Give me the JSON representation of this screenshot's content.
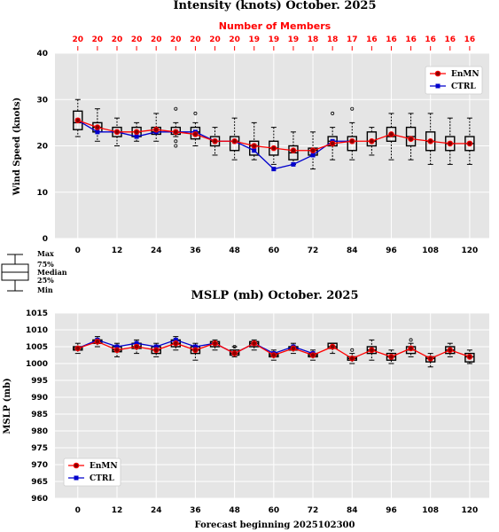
{
  "chart_data": [
    {
      "type": "box",
      "title": "Intensity (knots) October. 2025",
      "top_label": "Number of Members",
      "ylabel": "Wind Speed (knots)",
      "xlabel": "",
      "x": [
        0,
        6,
        12,
        18,
        24,
        30,
        36,
        42,
        48,
        54,
        60,
        66,
        72,
        78,
        84,
        90,
        96,
        102,
        108,
        114,
        120
      ],
      "x_ticks": [
        "0",
        "12",
        "24",
        "36",
        "48",
        "60",
        "72",
        "84",
        "96",
        "108",
        "120"
      ],
      "x_tick_values": [
        0,
        12,
        24,
        36,
        48,
        60,
        72,
        84,
        96,
        108,
        120
      ],
      "y_ticks": [
        "0",
        "10",
        "20",
        "30",
        "40"
      ],
      "xlim": [
        -7,
        126
      ],
      "ylim": [
        0,
        40
      ],
      "members": [
        "20",
        "20",
        "20",
        "20",
        "20",
        "20",
        "20",
        "20",
        "20",
        "19",
        "19",
        "19",
        "18",
        "18",
        "17",
        "16",
        "16",
        "16",
        "16",
        "16",
        "16"
      ],
      "boxes": [
        {
          "min": 22,
          "q1": 23.5,
          "median": 25,
          "q3": 27.5,
          "max": 30,
          "outliers": []
        },
        {
          "min": 21,
          "q1": 23,
          "median": 24,
          "q3": 25,
          "max": 28,
          "outliers": []
        },
        {
          "min": 20,
          "q1": 22,
          "median": 23,
          "q3": 24,
          "max": 26,
          "outliers": []
        },
        {
          "min": 21,
          "q1": 22,
          "median": 23,
          "q3": 24,
          "max": 25,
          "outliers": []
        },
        {
          "min": 21,
          "q1": 22.5,
          "median": 23,
          "q3": 24,
          "max": 27,
          "outliers": []
        },
        {
          "min": 22,
          "q1": 22.5,
          "median": 23,
          "q3": 24,
          "max": 25,
          "outliers": [
            28,
            21,
            20
          ]
        },
        {
          "min": 20,
          "q1": 21.5,
          "median": 23,
          "q3": 24,
          "max": 25,
          "outliers": [
            27
          ]
        },
        {
          "min": 18,
          "q1": 20,
          "median": 21,
          "q3": 22,
          "max": 24,
          "outliers": []
        },
        {
          "min": 17,
          "q1": 19,
          "median": 21,
          "q3": 22,
          "max": 26,
          "outliers": []
        },
        {
          "min": 17,
          "q1": 18,
          "median": 20,
          "q3": 21,
          "max": 25,
          "outliers": []
        },
        {
          "min": 16,
          "q1": 18,
          "median": 19.5,
          "q3": 21,
          "max": 24,
          "outliers": []
        },
        {
          "min": 16,
          "q1": 17,
          "median": 18.5,
          "q3": 20,
          "max": 23,
          "outliers": []
        },
        {
          "min": 15,
          "q1": 18,
          "median": 19,
          "q3": 19.5,
          "max": 23,
          "outliers": []
        },
        {
          "min": 17,
          "q1": 20,
          "median": 21,
          "q3": 22,
          "max": 24,
          "outliers": [
            27
          ]
        },
        {
          "min": 17,
          "q1": 19,
          "median": 21,
          "q3": 22,
          "max": 25,
          "outliers": [
            28
          ]
        },
        {
          "min": 18,
          "q1": 20,
          "median": 21,
          "q3": 23,
          "max": 24,
          "outliers": []
        },
        {
          "min": 17,
          "q1": 21,
          "median": 22,
          "q3": 24,
          "max": 27,
          "outliers": []
        },
        {
          "min": 17,
          "q1": 20,
          "median": 22,
          "q3": 24,
          "max": 27,
          "outliers": []
        },
        {
          "min": 16,
          "q1": 19,
          "median": 21,
          "q3": 23,
          "max": 27,
          "outliers": []
        },
        {
          "min": 16,
          "q1": 19,
          "median": 20.5,
          "q3": 22,
          "max": 26,
          "outliers": []
        },
        {
          "min": 16,
          "q1": 19,
          "median": 20.5,
          "q3": 22,
          "max": 26,
          "outliers": []
        }
      ],
      "series": [
        {
          "name": "EnMN",
          "color": "#ff0000",
          "marker": "circle",
          "values": [
            25.5,
            24,
            23,
            23,
            23.5,
            23,
            22.5,
            21,
            21,
            20,
            19.5,
            19,
            19,
            20.5,
            21,
            21,
            22.5,
            21.5,
            21,
            20.5,
            20.5
          ]
        },
        {
          "name": "CTRL",
          "color": "#0000cc",
          "marker": "square",
          "values": [
            25.5,
            23,
            23,
            22,
            23,
            23,
            23,
            21,
            21,
            19,
            15,
            16,
            18,
            21,
            21,
            null,
            null,
            null,
            null,
            null,
            null
          ]
        }
      ],
      "legend_position": "upper right",
      "grid": true
    },
    {
      "type": "box",
      "title": "MSLP (mb) October. 2025",
      "ylabel": "MSLP (mb)",
      "xlabel": "Forecast beginning 2025102300",
      "x": [
        0,
        6,
        12,
        18,
        24,
        30,
        36,
        42,
        48,
        54,
        60,
        66,
        72,
        78,
        84,
        90,
        96,
        102,
        108,
        114,
        120
      ],
      "x_ticks": [
        "0",
        "12",
        "24",
        "36",
        "48",
        "60",
        "72",
        "84",
        "96",
        "108",
        "120"
      ],
      "x_tick_values": [
        0,
        12,
        24,
        36,
        48,
        60,
        72,
        84,
        96,
        108,
        120
      ],
      "y_ticks": [
        "960",
        "965",
        "970",
        "975",
        "980",
        "985",
        "990",
        "995",
        "1000",
        "1005",
        "1010",
        "1015"
      ],
      "xlim": [
        -7,
        126
      ],
      "ylim": [
        960,
        1015
      ],
      "boxes": [
        {
          "min": 1003,
          "q1": 1004,
          "median": 1004.5,
          "q3": 1005,
          "max": 1006,
          "outliers": []
        },
        {
          "min": 1005,
          "q1": 1006,
          "median": 1006.5,
          "q3": 1007,
          "max": 1008,
          "outliers": []
        },
        {
          "min": 1002,
          "q1": 1003.5,
          "median": 1004,
          "q3": 1005,
          "max": 1006,
          "outliers": []
        },
        {
          "min": 1003,
          "q1": 1004.5,
          "median": 1005,
          "q3": 1006,
          "max": 1007,
          "outliers": []
        },
        {
          "min": 1002,
          "q1": 1003,
          "median": 1004,
          "q3": 1005,
          "max": 1006,
          "outliers": []
        },
        {
          "min": 1004,
          "q1": 1005,
          "median": 1006,
          "q3": 1007,
          "max": 1008,
          "outliers": []
        },
        {
          "min": 1001,
          "q1": 1003,
          "median": 1004,
          "q3": 1005,
          "max": 1006,
          "outliers": []
        },
        {
          "min": 1004,
          "q1": 1005,
          "median": 1006,
          "q3": 1006.5,
          "max": 1007,
          "outliers": []
        },
        {
          "min": 1002,
          "q1": 1002.5,
          "median": 1003,
          "q3": 1004,
          "max": 1005,
          "outliers": [
            1005
          ]
        },
        {
          "min": 1004,
          "q1": 1005,
          "median": 1006,
          "q3": 1006.5,
          "max": 1007,
          "outliers": []
        },
        {
          "min": 1001,
          "q1": 1002,
          "median": 1002.5,
          "q3": 1003,
          "max": 1004,
          "outliers": []
        },
        {
          "min": 1003,
          "q1": 1004,
          "median": 1004.5,
          "q3": 1005,
          "max": 1006,
          "outliers": []
        },
        {
          "min": 1001,
          "q1": 1002,
          "median": 1002.5,
          "q3": 1003,
          "max": 1004,
          "outliers": []
        },
        {
          "min": 1003,
          "q1": 1004.5,
          "median": 1005,
          "q3": 1006,
          "max": 1006,
          "outliers": []
        },
        {
          "min": 1000,
          "q1": 1001,
          "median": 1001.5,
          "q3": 1002,
          "max": 1003,
          "outliers": [
            1004
          ]
        },
        {
          "min": 1001,
          "q1": 1003,
          "median": 1004,
          "q3": 1005,
          "max": 1007,
          "outliers": []
        },
        {
          "min": 1000,
          "q1": 1001,
          "median": 1002,
          "q3": 1003,
          "max": 1004,
          "outliers": []
        },
        {
          "min": 1002,
          "q1": 1003,
          "median": 1004,
          "q3": 1005,
          "max": 1006,
          "outliers": [
            1007
          ]
        },
        {
          "min": 999,
          "q1": 1000.5,
          "median": 1001.5,
          "q3": 1002,
          "max": 1003,
          "outliers": []
        },
        {
          "min": 1002,
          "q1": 1003,
          "median": 1004,
          "q3": 1005,
          "max": 1006,
          "outliers": []
        },
        {
          "min": 1000,
          "q1": 1000.5,
          "median": 1002,
          "q3": 1003,
          "max": 1004,
          "outliers": []
        }
      ],
      "series": [
        {
          "name": "EnMN",
          "color": "#ff0000",
          "marker": "circle",
          "values": [
            1004.5,
            1006.5,
            1004,
            1005,
            1004,
            1006,
            1004,
            1006,
            1003,
            1006,
            1002.5,
            1004.5,
            1002.5,
            1005,
            1001.5,
            1004,
            1002,
            1004.5,
            1001.5,
            1004,
            1002
          ]
        },
        {
          "name": "CTRL",
          "color": "#0000cc",
          "marker": "square",
          "values": [
            1004.5,
            1007,
            1005,
            1006,
            1005,
            1007,
            1005,
            1006,
            1003,
            1006,
            1003,
            1005,
            1003,
            null,
            null,
            null,
            null,
            null,
            null,
            null,
            null
          ]
        }
      ],
      "legend_position": "lower left",
      "grid": true
    }
  ],
  "box_key": {
    "labels": [
      "Max",
      "75%",
      "Median",
      "25%",
      "Min"
    ]
  }
}
